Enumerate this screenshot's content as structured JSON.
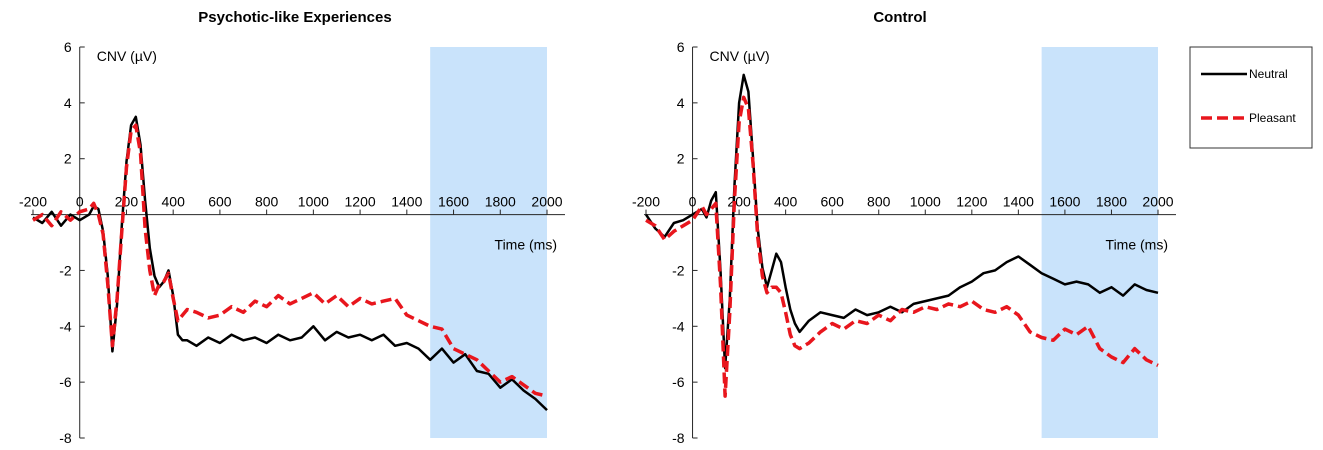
{
  "chart_data": [
    {
      "type": "line",
      "title": "Psychotic-like Experiences",
      "xlabel": "Time (ms)",
      "ylabel": "CNV (µV)",
      "xlim": [
        -200,
        2000
      ],
      "ylim": [
        -8,
        6
      ],
      "xticks": [
        "-200",
        "0",
        "200",
        "400",
        "600",
        "800",
        "1000",
        "1200",
        "1400",
        "1600",
        "1800",
        "2000"
      ],
      "yticks": [
        "6",
        "4",
        "2",
        "-2",
        "-4",
        "-6",
        "-8"
      ],
      "highlight_window": [
        1500,
        2000
      ],
      "series": [
        {
          "name": "Neutral",
          "color": "#000000",
          "style": "solid",
          "x": [
            -200,
            -160,
            -120,
            -80,
            -40,
            0,
            40,
            60,
            80,
            100,
            120,
            140,
            160,
            180,
            200,
            220,
            240,
            260,
            280,
            300,
            320,
            340,
            360,
            380,
            400,
            420,
            440,
            460,
            500,
            550,
            600,
            650,
            700,
            750,
            800,
            850,
            900,
            950,
            1000,
            1050,
            1100,
            1150,
            1200,
            1250,
            1300,
            1350,
            1400,
            1450,
            1500,
            1550,
            1600,
            1650,
            1700,
            1750,
            1800,
            1850,
            1900,
            1950,
            2000
          ],
          "y": [
            -0.1,
            -0.3,
            0.1,
            -0.4,
            0.0,
            -0.2,
            0.0,
            0.3,
            0.2,
            -0.6,
            -2.2,
            -4.9,
            -3.2,
            -0.4,
            1.9,
            3.2,
            3.5,
            2.5,
            0.5,
            -1.2,
            -2.2,
            -2.6,
            -2.4,
            -2.0,
            -2.9,
            -4.3,
            -4.5,
            -4.5,
            -4.7,
            -4.4,
            -4.6,
            -4.3,
            -4.5,
            -4.4,
            -4.6,
            -4.3,
            -4.5,
            -4.4,
            -4.0,
            -4.5,
            -4.2,
            -4.4,
            -4.3,
            -4.5,
            -4.3,
            -4.7,
            -4.6,
            -4.8,
            -5.2,
            -4.8,
            -5.3,
            -5.0,
            -5.6,
            -5.7,
            -6.2,
            -5.9,
            -6.3,
            -6.6,
            -7.0
          ]
        },
        {
          "name": "Pleasant",
          "color": "#e8161d",
          "style": "dashed",
          "x": [
            -200,
            -160,
            -120,
            -80,
            -40,
            0,
            40,
            60,
            80,
            100,
            120,
            140,
            160,
            180,
            200,
            220,
            240,
            260,
            280,
            300,
            320,
            340,
            360,
            380,
            400,
            420,
            440,
            460,
            500,
            550,
            600,
            650,
            700,
            750,
            800,
            850,
            900,
            950,
            1000,
            1050,
            1100,
            1150,
            1200,
            1250,
            1300,
            1350,
            1400,
            1450,
            1500,
            1550,
            1600,
            1650,
            1700,
            1750,
            1800,
            1850,
            1900,
            1950,
            2000
          ],
          "y": [
            -0.2,
            0.0,
            -0.4,
            0.1,
            -0.2,
            0.1,
            0.2,
            0.4,
            0.0,
            -0.7,
            -2.5,
            -4.7,
            -3.0,
            -0.6,
            1.7,
            3.0,
            3.2,
            2.2,
            -0.5,
            -2.0,
            -2.9,
            -2.5,
            -2.4,
            -2.1,
            -3.0,
            -3.8,
            -3.6,
            -3.4,
            -3.5,
            -3.7,
            -3.6,
            -3.3,
            -3.5,
            -3.1,
            -3.3,
            -2.9,
            -3.2,
            -3.0,
            -2.8,
            -3.2,
            -2.9,
            -3.3,
            -3.0,
            -3.2,
            -3.1,
            -3.0,
            -3.6,
            -3.8,
            -4.0,
            -4.1,
            -4.8,
            -5.0,
            -5.2,
            -5.6,
            -6.0,
            -5.8,
            -6.1,
            -6.4,
            -6.5
          ]
        }
      ]
    },
    {
      "type": "line",
      "title": "Control",
      "xlabel": "Time (ms)",
      "ylabel": "CNV (µV)",
      "xlim": [
        -200,
        2000
      ],
      "ylim": [
        -8,
        6
      ],
      "xticks": [
        "-200",
        "0",
        "200",
        "400",
        "600",
        "800",
        "1000",
        "1200",
        "1400",
        "1600",
        "1800",
        "2000"
      ],
      "yticks": [
        "6",
        "4",
        "2",
        "-2",
        "-4",
        "-6",
        "-8"
      ],
      "highlight_window": [
        1500,
        2000
      ],
      "series": [
        {
          "name": "Neutral",
          "color": "#000000",
          "style": "solid",
          "x": [
            -200,
            -160,
            -120,
            -80,
            -40,
            0,
            40,
            60,
            80,
            100,
            120,
            140,
            160,
            180,
            200,
            220,
            240,
            260,
            280,
            300,
            320,
            340,
            360,
            380,
            400,
            420,
            440,
            460,
            500,
            550,
            600,
            650,
            700,
            750,
            800,
            850,
            900,
            950,
            1000,
            1050,
            1100,
            1150,
            1200,
            1250,
            1300,
            1350,
            1400,
            1450,
            1500,
            1550,
            1600,
            1650,
            1700,
            1750,
            1800,
            1850,
            1900,
            1950,
            2000
          ],
          "y": [
            0.0,
            -0.5,
            -0.8,
            -0.3,
            -0.2,
            0.0,
            0.2,
            -0.1,
            0.5,
            0.8,
            -2.0,
            -5.5,
            -3.0,
            1.0,
            4.0,
            5.0,
            4.4,
            2.0,
            -0.5,
            -1.9,
            -2.6,
            -2.0,
            -1.4,
            -1.7,
            -2.6,
            -3.4,
            -3.9,
            -4.2,
            -3.8,
            -3.5,
            -3.6,
            -3.7,
            -3.4,
            -3.6,
            -3.5,
            -3.3,
            -3.5,
            -3.2,
            -3.1,
            -3.0,
            -2.9,
            -2.6,
            -2.4,
            -2.1,
            -2.0,
            -1.7,
            -1.5,
            -1.8,
            -2.1,
            -2.3,
            -2.5,
            -2.4,
            -2.5,
            -2.8,
            -2.6,
            -2.9,
            -2.5,
            -2.7,
            -2.8
          ]
        },
        {
          "name": "Pleasant",
          "color": "#e8161d",
          "style": "dashed",
          "x": [
            -200,
            -160,
            -120,
            -80,
            -40,
            0,
            40,
            60,
            80,
            100,
            120,
            140,
            160,
            180,
            200,
            220,
            240,
            260,
            280,
            300,
            320,
            340,
            360,
            380,
            400,
            420,
            440,
            460,
            500,
            550,
            600,
            650,
            700,
            750,
            800,
            850,
            900,
            950,
            1000,
            1050,
            1100,
            1150,
            1200,
            1250,
            1300,
            1350,
            1400,
            1450,
            1500,
            1550,
            1600,
            1650,
            1700,
            1750,
            1800,
            1850,
            1900,
            1950,
            2000
          ],
          "y": [
            -0.2,
            -0.4,
            -0.9,
            -0.6,
            -0.4,
            -0.2,
            0.3,
            0.0,
            0.2,
            0.4,
            -2.5,
            -6.5,
            -3.5,
            0.5,
            3.3,
            4.2,
            3.8,
            1.8,
            -0.8,
            -2.2,
            -2.8,
            -2.6,
            -2.6,
            -2.8,
            -3.5,
            -4.3,
            -4.7,
            -4.8,
            -4.6,
            -4.2,
            -3.9,
            -4.1,
            -3.8,
            -3.9,
            -3.6,
            -3.8,
            -3.4,
            -3.5,
            -3.3,
            -3.4,
            -3.2,
            -3.3,
            -3.1,
            -3.4,
            -3.5,
            -3.3,
            -3.6,
            -4.2,
            -4.4,
            -4.5,
            -4.1,
            -4.3,
            -4.0,
            -4.8,
            -5.1,
            -5.3,
            -4.8,
            -5.2,
            -5.4
          ]
        }
      ]
    }
  ],
  "legend": {
    "placement": "right",
    "entries": [
      {
        "label": "Neutral",
        "color": "#000000",
        "style": "solid"
      },
      {
        "label": "Pleasant",
        "color": "#e8161d",
        "style": "dashed"
      }
    ]
  },
  "colors": {
    "highlight": "#c9e3fb"
  }
}
